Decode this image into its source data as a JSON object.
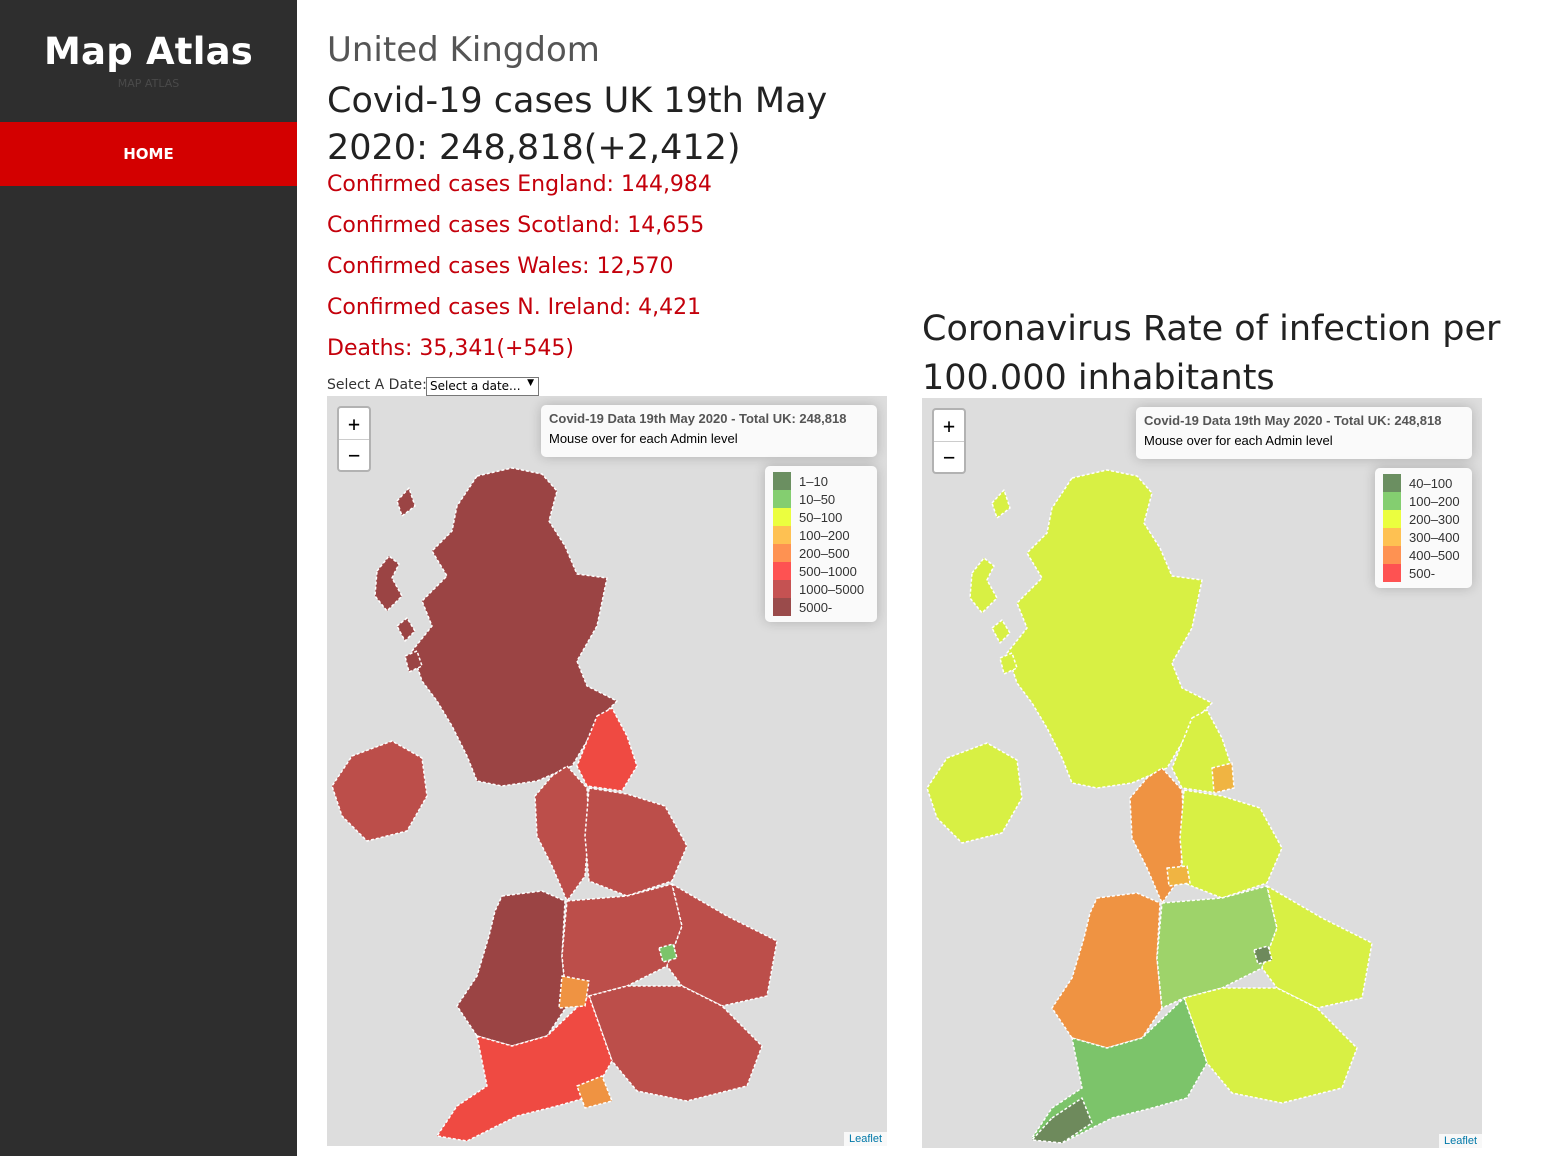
{
  "sidebar": {
    "brand": "Map Atlas",
    "brand_sub": "MAP ATLAS",
    "nav": [
      {
        "label": "HOME"
      }
    ]
  },
  "main": {
    "country": "United Kingdom",
    "headline": "Covid-19 cases UK 19th May 2020: 248,818(+2,412)",
    "stats": [
      "Confirmed cases England: 144,984",
      "Confirmed cases Scotland: 14,655",
      "Confirmed cases Wales: 12,570",
      "Confirmed cases N. Ireland: 4,421",
      "Deaths: 35,341(+545)"
    ],
    "date_label": "Select A Date:",
    "date_select": {
      "selected": "Select a date..."
    },
    "rate_title": "Coronavirus Rate of infection per 100.000 inhabitants"
  },
  "maps": [
    {
      "info_title": "Covid-19 Data 19th May 2020 - Total UK: 248,818",
      "info_text": "Mouse over for each Admin level",
      "zoom_in": "+",
      "zoom_out": "−",
      "attribution": "Leaflet",
      "legend": [
        {
          "label": "1–10",
          "color": "#3b6b2e"
        },
        {
          "label": "10–50",
          "color": "#5cbf41"
        },
        {
          "label": "50–100",
          "color": "#e6ff00"
        },
        {
          "label": "100–200",
          "color": "#ffae1a"
        },
        {
          "label": "200–500",
          "color": "#ff6f1a"
        },
        {
          "label": "500–1000",
          "color": "#ff1a1a"
        },
        {
          "label": "1000–5000",
          "color": "#b31a1a"
        },
        {
          "label": "5000-",
          "color": "#7a1010"
        }
      ],
      "regions": {
        "scotland": "#9b4444",
        "n_ireland": "#bc4e4a",
        "wales": "#9b4444",
        "north_east": "#ef4a42",
        "north_west": "#bc4e4a",
        "yorkshire": "#bc4e4a",
        "midlands": "#bc4e4a",
        "east": "#bc4e4a",
        "south_east": "#bc4e4a",
        "south_west": "#ef4a42",
        "hotspot": "#ef9342",
        "green_spot": "#7cc46a"
      }
    },
    {
      "info_title": "Covid-19 Data 19th May 2020 - Total UK: 248,818",
      "info_text": "Mouse over for each Admin level",
      "zoom_in": "+",
      "zoom_out": "−",
      "attribution": "Leaflet",
      "legend": [
        {
          "label": "40–100",
          "color": "#3b6b2e"
        },
        {
          "label": "100–200",
          "color": "#5cbf41"
        },
        {
          "label": "200–300",
          "color": "#e6ff00"
        },
        {
          "label": "300–400",
          "color": "#ffae1a"
        },
        {
          "label": "400–500",
          "color": "#ff6f1a"
        },
        {
          "label": "500-",
          "color": "#ff1a1a"
        }
      ],
      "regions": {
        "scotland": "#d8f044",
        "n_ireland": "#d8f044",
        "wales": "#ef9342",
        "north_east": "#d8f044",
        "north_west": "#ef9342",
        "yorkshire": "#d8f044",
        "midlands": "#9ed36a",
        "east": "#d8f044",
        "south_east": "#d8f044",
        "south_west": "#7cc46a",
        "hotspot": "#f0b442",
        "green_spot": "#6e8a5c"
      }
    }
  ]
}
